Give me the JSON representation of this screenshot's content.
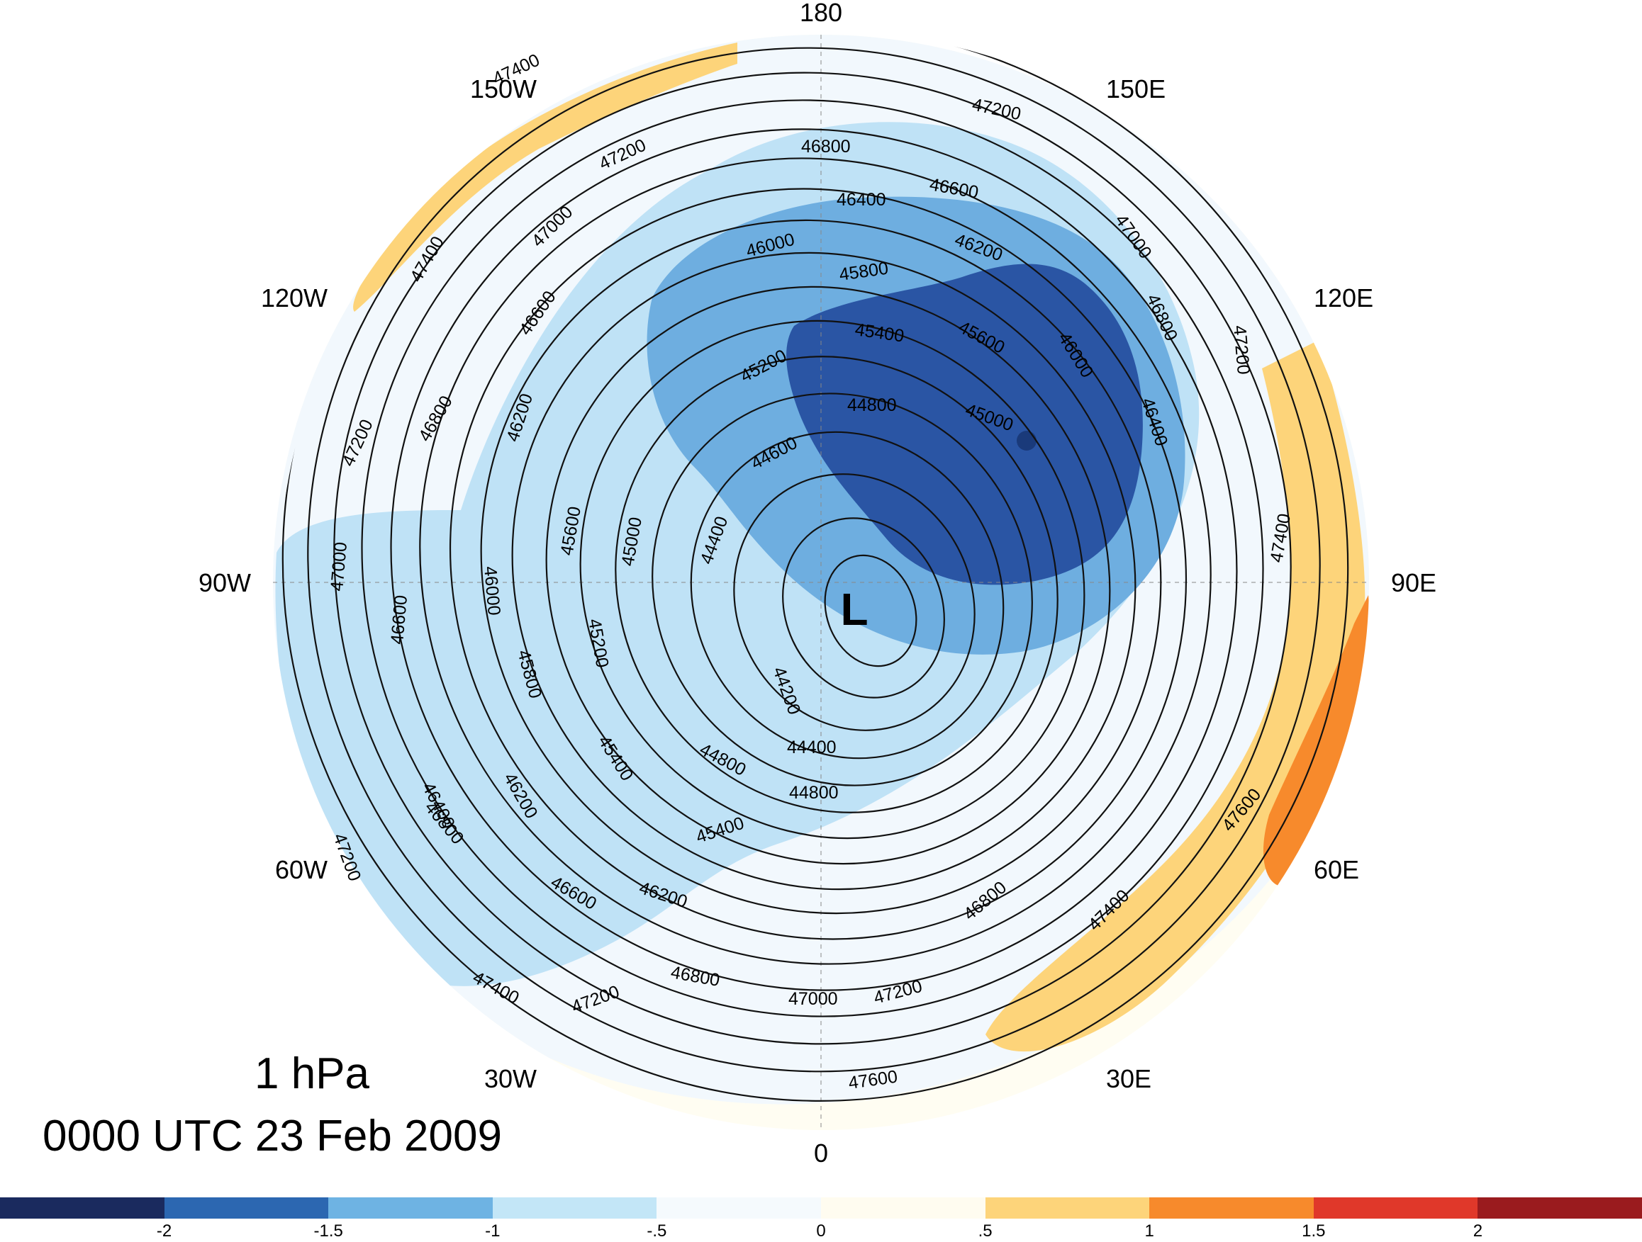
{
  "map": {
    "projection": "north-polar-stereographic",
    "level": "1 hPa",
    "valid_time": "0000 UTC 23 Feb 2009",
    "longitude_labels": {
      "lon_0": "0",
      "lon_30E": "30E",
      "lon_60E": "60E",
      "lon_90E": "90E",
      "lon_120E": "120E",
      "lon_150E": "150E",
      "lon_180": "180",
      "lon_150W": "150W",
      "lon_120W": "120W",
      "lon_90W": "90W",
      "lon_60W": "60W",
      "lon_30W": "30W"
    },
    "low_marker": "L",
    "contour_labels": {
      "c44200": "44200",
      "c44400a": "44400",
      "c44400b": "44400",
      "c44600": "44600",
      "c44800a": "44800",
      "c44800b": "44800",
      "c44800c": "44800",
      "c45000a": "45000",
      "c45000b": "45000",
      "c45200a": "45200",
      "c45200b": "45200",
      "c45400a": "45400",
      "c45400b": "45400",
      "c45400c": "45400",
      "c45600a": "45600",
      "c45600b": "45600",
      "c45800a": "45800",
      "c45800b": "45800",
      "c46000a": "46000",
      "c46000b": "46000",
      "c46000c": "46000",
      "c46200a": "46200",
      "c46200b": "46200",
      "c46200c": "46200",
      "c46200d": "46200",
      "c46400a": "46400",
      "c46400b": "46400",
      "c46400c": "46400",
      "c46600a": "46600",
      "c46600b": "46600",
      "c46600c": "46600",
      "c46600d": "46600",
      "c46800a": "46800",
      "c46800b": "46800",
      "c46800c": "46800",
      "c46800d": "46800",
      "c46800e": "46800",
      "c46800f": "46800",
      "c47000a": "47000",
      "c47000b": "47000",
      "c47000c": "47000",
      "c47000d": "47000",
      "c47200a": "47200",
      "c47200b": "47200",
      "c47200c": "47200",
      "c47200d": "47200",
      "c47200e": "47200",
      "c47200f": "47200",
      "c47200g": "47200",
      "c47400a": "47400",
      "c47400b": "47400",
      "c47400c": "47400",
      "c47400d": "47400",
      "c47400e": "47400",
      "c47600a": "47600",
      "c47600b": "47600"
    },
    "shading_colors": {
      "very_dark_blue": "#2a55a4",
      "medium_blue": "#6eaee0",
      "light_blue": "#bfe2f6",
      "pale_blue": "#f2f8fd",
      "cream": "#fffdf2",
      "light_orange": "#fdd47a",
      "orange": "#f78a2c"
    }
  },
  "colorbar": {
    "colors": [
      "#1a2a5e",
      "#2c67b1",
      "#6eb3e3",
      "#c3e6f7",
      "#f5fafd",
      "#fffcf0",
      "#fdd47a",
      "#f78a2c",
      "#e0382a",
      "#9a1b1e"
    ],
    "labels": [
      "-2",
      "-1.5",
      "-1",
      "-.5",
      "0",
      ".5",
      "1",
      "1.5",
      "2"
    ]
  }
}
